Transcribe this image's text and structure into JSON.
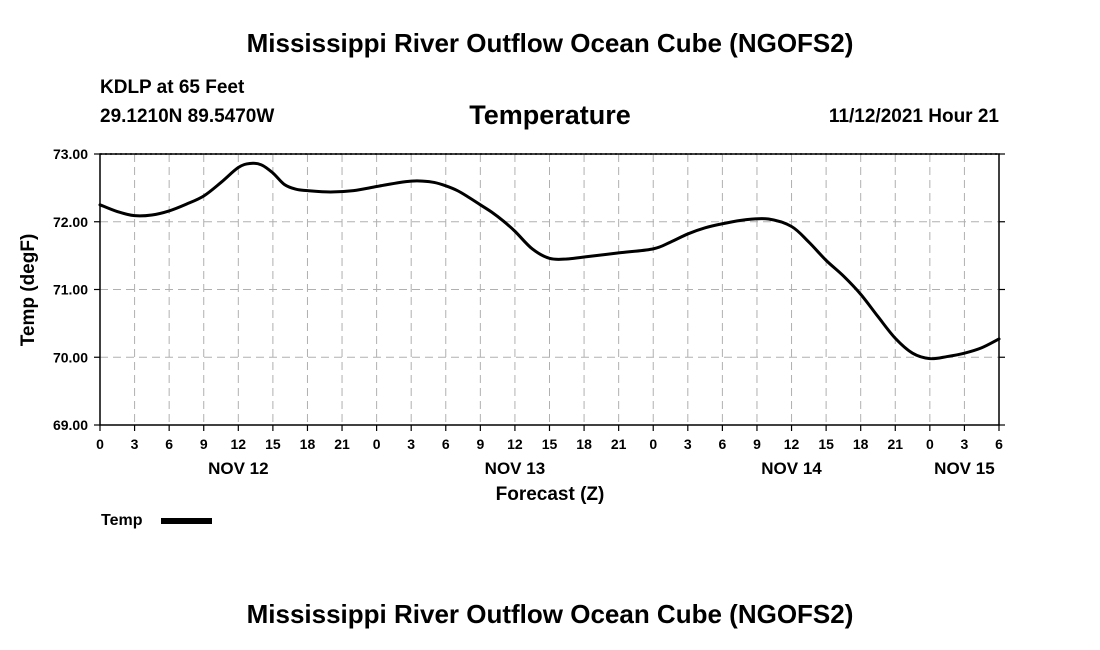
{
  "header": {
    "title": "Mississippi River Outflow Ocean Cube (NGOFS2)",
    "station": "KDLP at 65 Feet",
    "coords": "29.1210N  89.5470W",
    "subtitle": "Temperature",
    "datetime": "11/12/2021 Hour 21"
  },
  "footer": {
    "title": "Mississippi River Outflow Ocean Cube (NGOFS2)"
  },
  "colors": {
    "line": "#000000",
    "grid": "#b0b0b0",
    "background": "#ffffff"
  },
  "chart_data": {
    "type": "line",
    "title": "Temperature",
    "xlabel": "Forecast (Z)",
    "ylabel": "Temp (degF)",
    "ylim": [
      69.0,
      73.0
    ],
    "yticks": [
      "69.00",
      "70.00",
      "71.00",
      "72.00",
      "73.00"
    ],
    "xlim": [
      0,
      78
    ],
    "xticks": [
      {
        "h": 0,
        "label": "0"
      },
      {
        "h": 3,
        "label": "3"
      },
      {
        "h": 6,
        "label": "6"
      },
      {
        "h": 9,
        "label": "9"
      },
      {
        "h": 12,
        "label": "12"
      },
      {
        "h": 15,
        "label": "15"
      },
      {
        "h": 18,
        "label": "18"
      },
      {
        "h": 21,
        "label": "21"
      },
      {
        "h": 24,
        "label": "0"
      },
      {
        "h": 27,
        "label": "3"
      },
      {
        "h": 30,
        "label": "6"
      },
      {
        "h": 33,
        "label": "9"
      },
      {
        "h": 36,
        "label": "12"
      },
      {
        "h": 39,
        "label": "15"
      },
      {
        "h": 42,
        "label": "18"
      },
      {
        "h": 45,
        "label": "21"
      },
      {
        "h": 48,
        "label": "0"
      },
      {
        "h": 51,
        "label": "3"
      },
      {
        "h": 54,
        "label": "6"
      },
      {
        "h": 57,
        "label": "9"
      },
      {
        "h": 60,
        "label": "12"
      },
      {
        "h": 63,
        "label": "15"
      },
      {
        "h": 66,
        "label": "18"
      },
      {
        "h": 69,
        "label": "21"
      },
      {
        "h": 72,
        "label": "0"
      },
      {
        "h": 75,
        "label": "3"
      },
      {
        "h": 78,
        "label": "6"
      }
    ],
    "date_labels": [
      {
        "h": 12,
        "label": "NOV 12"
      },
      {
        "h": 36,
        "label": "NOV 13"
      },
      {
        "h": 60,
        "label": "NOV 14"
      },
      {
        "h": 75,
        "label": "NOV 15"
      }
    ],
    "grid": true,
    "legend": {
      "label": "Temp",
      "position": "bottom-left"
    },
    "series": [
      {
        "name": "Temp",
        "x": [
          0,
          1.5,
          3,
          4.5,
          6,
          7.5,
          9,
          10.5,
          12,
          13,
          14,
          15,
          16,
          17,
          18,
          20,
          22,
          24,
          26,
          27,
          28,
          29,
          30,
          31,
          32,
          33,
          34,
          35,
          36,
          37.5,
          39,
          40.5,
          42,
          45,
          48,
          49.5,
          51,
          52.5,
          54,
          56,
          58,
          60,
          61.5,
          63,
          64.5,
          66,
          67.5,
          69,
          70.5,
          72,
          73.5,
          75,
          76.5,
          78
        ],
        "y": [
          72.25,
          72.15,
          72.09,
          72.1,
          72.16,
          72.26,
          72.38,
          72.58,
          72.8,
          72.86,
          72.84,
          72.72,
          72.55,
          72.48,
          72.46,
          72.44,
          72.46,
          72.52,
          72.58,
          72.6,
          72.6,
          72.58,
          72.53,
          72.46,
          72.36,
          72.25,
          72.14,
          72.01,
          71.86,
          71.6,
          71.46,
          71.45,
          71.48,
          71.54,
          71.6,
          71.7,
          71.82,
          71.91,
          71.97,
          72.03,
          72.04,
          71.93,
          71.7,
          71.43,
          71.2,
          70.93,
          70.6,
          70.28,
          70.06,
          69.98,
          70.01,
          70.06,
          70.14,
          70.27
        ]
      }
    ]
  }
}
